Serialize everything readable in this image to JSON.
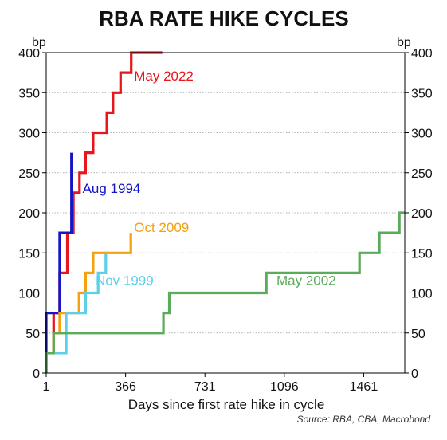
{
  "chart_data": {
    "type": "line",
    "title": "RBA RATE HIKE CYCLES",
    "xlabel": "Days since first rate hike in cycle",
    "ylabel_left": "bp",
    "ylabel_right": "bp",
    "source": "Source: RBA, CBA, Macrobond",
    "xlim": [
      1,
      1650
    ],
    "ylim": [
      0,
      400
    ],
    "x_ticks": [
      1,
      366,
      731,
      1096,
      1461
    ],
    "y_ticks": [
      0,
      50,
      100,
      150,
      200,
      250,
      300,
      350,
      400
    ],
    "grid": "horizontal dotted",
    "series": [
      {
        "name": "May 2022",
        "color": "#e8151b",
        "points": [
          [
            1,
            0
          ],
          [
            1,
            25
          ],
          [
            35,
            25
          ],
          [
            35,
            75
          ],
          [
            63,
            75
          ],
          [
            63,
            125
          ],
          [
            98,
            125
          ],
          [
            98,
            175
          ],
          [
            126,
            175
          ],
          [
            126,
            225
          ],
          [
            154,
            225
          ],
          [
            154,
            250
          ],
          [
            182,
            250
          ],
          [
            182,
            275
          ],
          [
            217,
            275
          ],
          [
            217,
            300
          ],
          [
            280,
            300
          ],
          [
            280,
            325
          ],
          [
            308,
            325
          ],
          [
            308,
            350
          ],
          [
            343,
            350
          ],
          [
            343,
            375
          ],
          [
            392,
            375
          ],
          [
            392,
            400
          ],
          [
            535,
            400
          ]
        ]
      },
      {
        "name": "Aug 1994",
        "color": "#1414c8",
        "points": [
          [
            1,
            0
          ],
          [
            1,
            75
          ],
          [
            63,
            75
          ],
          [
            63,
            175
          ],
          [
            117,
            175
          ],
          [
            117,
            275
          ]
        ]
      },
      {
        "name": "Oct 2009",
        "color": "#f5a00f",
        "points": [
          [
            1,
            0
          ],
          [
            1,
            25
          ],
          [
            35,
            25
          ],
          [
            35,
            50
          ],
          [
            63,
            50
          ],
          [
            63,
            75
          ],
          [
            152,
            75
          ],
          [
            152,
            100
          ],
          [
            182,
            100
          ],
          [
            182,
            125
          ],
          [
            217,
            125
          ],
          [
            217,
            150
          ],
          [
            390,
            150
          ],
          [
            390,
            175
          ]
        ]
      },
      {
        "name": "Nov 1999",
        "color": "#5bd0e8",
        "points": [
          [
            1,
            0
          ],
          [
            1,
            25
          ],
          [
            93,
            25
          ],
          [
            93,
            75
          ],
          [
            182,
            75
          ],
          [
            182,
            100
          ],
          [
            240,
            100
          ],
          [
            240,
            125
          ],
          [
            275,
            125
          ],
          [
            275,
            150
          ]
        ]
      },
      {
        "name": "May 2002",
        "color": "#5aab5a",
        "points": [
          [
            1,
            0
          ],
          [
            1,
            25
          ],
          [
            35,
            25
          ],
          [
            35,
            50
          ],
          [
            540,
            50
          ],
          [
            540,
            75
          ],
          [
            567,
            75
          ],
          [
            567,
            100
          ],
          [
            1013,
            100
          ],
          [
            1013,
            125
          ],
          [
            1442,
            125
          ],
          [
            1442,
            150
          ],
          [
            1533,
            150
          ],
          [
            1533,
            175
          ],
          [
            1625,
            175
          ],
          [
            1625,
            200
          ],
          [
            1650,
            200
          ]
        ]
      }
    ],
    "series_labels": [
      {
        "name": "May 2022",
        "color": "#e8151b",
        "at": [
          405,
          365
        ]
      },
      {
        "name": "Aug 1994",
        "color": "#1414c8",
        "at": [
          168,
          225
        ]
      },
      {
        "name": "Oct 2009",
        "color": "#f5a00f",
        "at": [
          405,
          176
        ]
      },
      {
        "name": "Nov 1999",
        "color": "#5bd0e8",
        "at": [
          228,
          110
        ]
      },
      {
        "name": "May 2002",
        "color": "#5aab5a",
        "at": [
          1060,
          110
        ]
      }
    ]
  }
}
